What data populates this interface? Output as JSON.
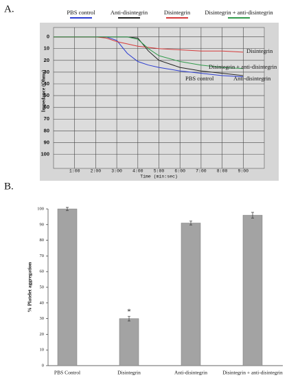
{
  "chart_data": [
    {
      "type": "line",
      "panel_label": "A.",
      "y_label": "Impedance (Ohms)",
      "x_label": "Time (min:sec)",
      "x": [
        0,
        1,
        2,
        2.5,
        3,
        3.5,
        4,
        4.5,
        5,
        6,
        7,
        8,
        9
      ],
      "xlim": [
        0,
        10
      ],
      "xticks": [
        {
          "value": 1,
          "label": "1:00"
        },
        {
          "value": 2,
          "label": "2:00"
        },
        {
          "value": 3,
          "label": "3:00"
        },
        {
          "value": 4,
          "label": "4:00"
        },
        {
          "value": 5,
          "label": "5:00"
        },
        {
          "value": 6,
          "label": "6:00"
        },
        {
          "value": 7,
          "label": "7:00"
        },
        {
          "value": 8,
          "label": "8:00"
        },
        {
          "value": 9,
          "label": "9:00"
        }
      ],
      "ylim": [
        -8,
        112
      ],
      "y_inverted": true,
      "yticks": [
        0,
        10,
        20,
        30,
        40,
        50,
        60,
        70,
        80,
        90,
        100
      ],
      "grid": true,
      "legend": "top",
      "series": [
        {
          "name": "PBS control",
          "color": "#2a3bd0",
          "values": [
            0,
            0,
            0,
            0,
            3,
            14,
            21,
            24,
            26,
            29,
            31,
            33,
            34
          ]
        },
        {
          "name": "Anti-disintegrin",
          "color": "#222222",
          "values": [
            0,
            0,
            0,
            0,
            0,
            0,
            1,
            12,
            20,
            26,
            29,
            31,
            33
          ]
        },
        {
          "name": "Disintegrin",
          "color": "#d63a3a",
          "values": [
            0,
            0,
            0,
            1,
            4,
            6,
            8,
            9,
            10,
            11,
            12,
            12,
            13
          ]
        },
        {
          "name": "Disintegrin + anti-disintegrin",
          "color": "#2f9a4a",
          "values": [
            0,
            0,
            0,
            0,
            0,
            0,
            2,
            10,
            16,
            21,
            24,
            26,
            27
          ]
        }
      ],
      "annotations": [
        "Disintegrin",
        "Disintegrin + anti-disintegrin",
        "PBS control",
        "Anti-disintegrin"
      ]
    },
    {
      "type": "bar",
      "panel_label": "B.",
      "y_label": "% Platelet aggregation",
      "categories": [
        "PBS Control",
        "Disintegrin",
        "Anti-disintegrin",
        "Disintegrin + anti-disintegrin"
      ],
      "values": [
        100,
        30,
        91,
        96
      ],
      "errors": [
        1,
        1.5,
        1.2,
        1.8
      ],
      "color": "#a3a3a3",
      "ylim": [
        0,
        100
      ],
      "yticks": [
        0,
        10,
        20,
        30,
        40,
        50,
        60,
        70,
        80,
        90,
        100
      ],
      "annotations": [
        "*"
      ]
    }
  ]
}
